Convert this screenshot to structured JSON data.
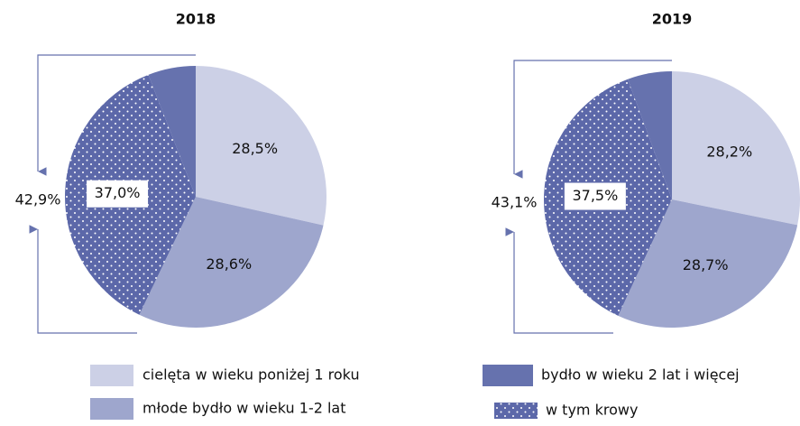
{
  "chart_data": [
    {
      "type": "pie",
      "title": "2018",
      "categories": [
        "cielęta w wieku poniżej 1 roku",
        "młode bydło w wieku 1-2 lat",
        "w tym krowy",
        "bydło w wieku 2 lat i więcej"
      ],
      "values": [
        28.5,
        28.6,
        37.0,
        5.9
      ],
      "value_labels": [
        "28,5%",
        "28,6%",
        "37,0%",
        null
      ],
      "bracket": {
        "value": 42.9,
        "label": "42,9%"
      }
    },
    {
      "type": "pie",
      "title": "2019",
      "categories": [
        "cielęta w wieku poniżej 1 roku",
        "młode bydło w wieku 1-2 lat",
        "w tym krowy",
        "bydło w wieku 2 lat i więcej"
      ],
      "values": [
        28.2,
        28.7,
        37.5,
        5.6
      ],
      "value_labels": [
        "28,2%",
        "28,7%",
        "37,5%",
        null
      ],
      "bracket": {
        "value": 43.1,
        "label": "43,1%"
      }
    }
  ],
  "legend": {
    "items": [
      {
        "label": "cielęta w wieku poniżej 1 roku",
        "color": "#ccd0e6"
      },
      {
        "label": "młode bydło w wieku 1-2 lat",
        "color": "#9ea6cd"
      },
      {
        "label": "bydło w wieku 2 lat i więcej",
        "color": "#6672ae"
      },
      {
        "label": "w tym krowy",
        "color": "#5c68a9",
        "pattern": "dots"
      }
    ]
  }
}
